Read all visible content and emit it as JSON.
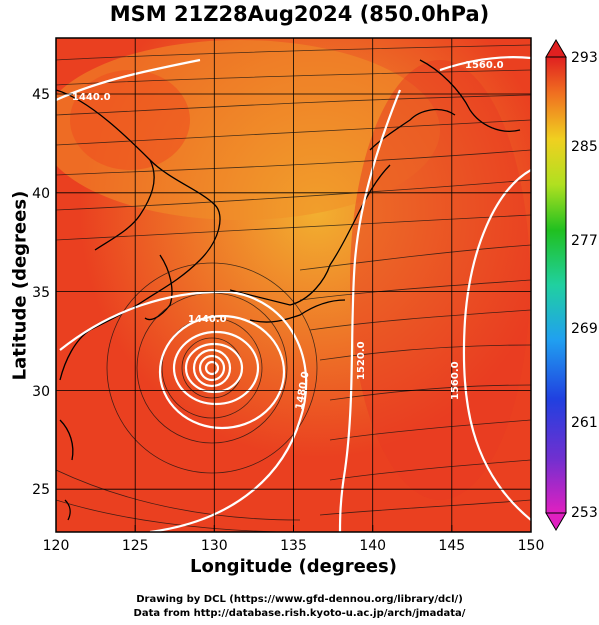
{
  "title": "MSM 21Z28Aug2024 (850.0hPa)",
  "xlabel": "Longitude (degrees)",
  "ylabel": "Latitude  (degrees)",
  "x_ticks": [
    "120",
    "125",
    "130",
    "135",
    "140",
    "145",
    "150"
  ],
  "y_ticks": [
    "25",
    "30",
    "35",
    "40",
    "45"
  ],
  "colorbar_ticks": [
    "293",
    "285",
    "277",
    "269",
    "261",
    "253"
  ],
  "contour_labels": [
    "1440.0",
    "1520.0",
    "1560.0",
    "1480.0",
    "1440.0",
    "1520.0",
    "1560.0"
  ],
  "credit_line1": "Drawing by DCL (https://www.gfd-dennou.org/library/dcl/)",
  "credit_line2": "Data from http://database.rish.kyoto-u.ac.jp/arch/jmadata/",
  "colors": {
    "warm": "#ee3a1f",
    "mid": "#f07828",
    "cool": "#f2b834"
  }
}
